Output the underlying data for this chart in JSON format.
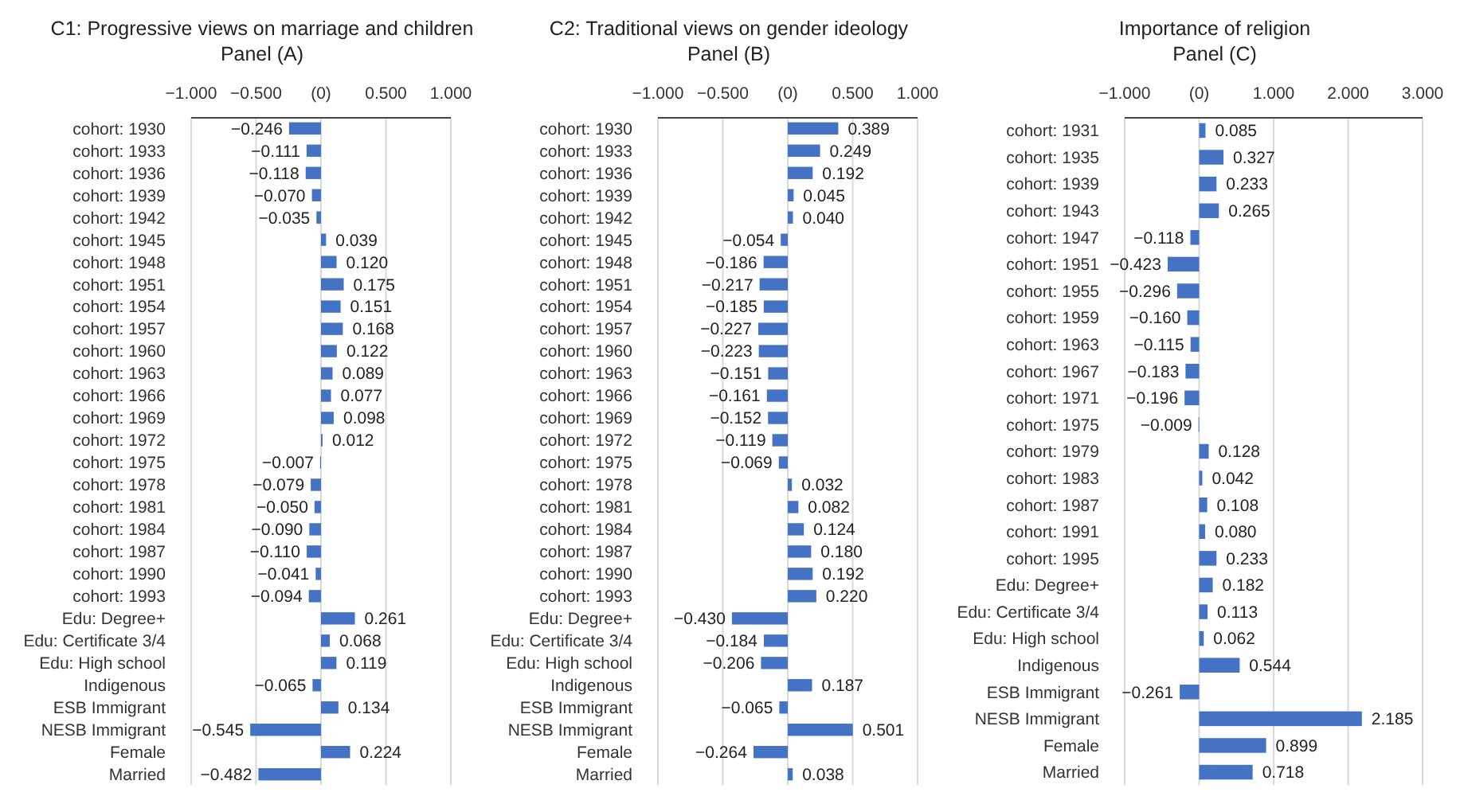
{
  "chart_data": [
    {
      "type": "bar",
      "orientation": "horizontal",
      "title": "C1: Progressive views on marriage and children",
      "subtitle": "Panel (A)",
      "color": "#4472c4",
      "grid": "x",
      "categories": [
        "cohort: 1930",
        "cohort: 1933",
        "cohort: 1936",
        "cohort: 1939",
        "cohort: 1942",
        "cohort: 1945",
        "cohort: 1948",
        "cohort: 1951",
        "cohort: 1954",
        "cohort: 1957",
        "cohort: 1960",
        "cohort: 1963",
        "cohort: 1966",
        "cohort: 1969",
        "cohort: 1972",
        "cohort: 1975",
        "cohort: 1978",
        "cohort: 1981",
        "cohort: 1984",
        "cohort: 1987",
        "cohort: 1990",
        "cohort: 1993",
        "Edu: Degree+",
        "Edu: Certificate 3/4",
        "Edu: High school",
        "Indigenous",
        "ESB Immigrant",
        "NESB Immigrant",
        "Female",
        "Married"
      ],
      "values": [
        -0.246,
        -0.111,
        -0.118,
        -0.07,
        -0.035,
        0.039,
        0.12,
        0.175,
        0.151,
        0.168,
        0.122,
        0.089,
        0.077,
        0.098,
        0.012,
        -0.007,
        -0.079,
        -0.05,
        -0.09,
        -0.11,
        -0.041,
        -0.094,
        0.261,
        0.068,
        0.119,
        -0.065,
        0.134,
        -0.545,
        0.224,
        -0.482
      ],
      "value_labels": [
        "−0.246",
        "−0.111",
        "−0.118",
        "−0.070",
        "−0.035",
        "0.039",
        "0.120",
        "0.175",
        "0.151",
        "0.168",
        "0.122",
        "0.089",
        "0.077",
        "0.098",
        "0.012",
        "−0.007",
        "−0.079",
        "−0.050",
        "−0.090",
        "−0.110",
        "−0.041",
        "−0.094",
        "0.261",
        "0.068",
        "0.119",
        "−0.065",
        "0.134",
        "−0.545",
        "0.224",
        "−0.482"
      ],
      "xlim": [
        -1,
        1
      ],
      "xticks": [
        {
          "value": -1,
          "label": "−1.000"
        },
        {
          "value": -0.5,
          "label": "−0.500"
        },
        {
          "value": 0,
          "label": "(0)"
        },
        {
          "value": 0.5,
          "label": "0.500"
        },
        {
          "value": 1,
          "label": "1.000"
        }
      ]
    },
    {
      "type": "bar",
      "orientation": "horizontal",
      "title": "C2: Traditional views on gender ideology",
      "subtitle": "Panel (B)",
      "color": "#4472c4",
      "grid": "x",
      "categories": [
        "cohort: 1930",
        "cohort: 1933",
        "cohort: 1936",
        "cohort: 1939",
        "cohort: 1942",
        "cohort: 1945",
        "cohort: 1948",
        "cohort: 1951",
        "cohort: 1954",
        "cohort: 1957",
        "cohort: 1960",
        "cohort: 1963",
        "cohort: 1966",
        "cohort: 1969",
        "cohort: 1972",
        "cohort: 1975",
        "cohort: 1978",
        "cohort: 1981",
        "cohort: 1984",
        "cohort: 1987",
        "cohort: 1990",
        "cohort: 1993",
        "Edu: Degree+",
        "Edu: Certificate 3/4",
        "Edu: High school",
        "Indigenous",
        "ESB Immigrant",
        "NESB Immigrant",
        "Female",
        "Married"
      ],
      "values": [
        0.389,
        0.249,
        0.192,
        0.045,
        0.04,
        -0.054,
        -0.186,
        -0.217,
        -0.185,
        -0.227,
        -0.223,
        -0.151,
        -0.161,
        -0.152,
        -0.119,
        -0.069,
        0.032,
        0.082,
        0.124,
        0.18,
        0.192,
        0.22,
        -0.43,
        -0.184,
        -0.206,
        0.187,
        -0.065,
        0.501,
        -0.264,
        0.038
      ],
      "value_labels": [
        "0.389",
        "0.249",
        "0.192",
        "0.045",
        "0.040",
        "−0.054",
        "−0.186",
        "−0.217",
        "−0.185",
        "−0.227",
        "−0.223",
        "−0.151",
        "−0.161",
        "−0.152",
        "−0.119",
        "−0.069",
        "0.032",
        "0.082",
        "0.124",
        "0.180",
        "0.192",
        "0.220",
        "−0.430",
        "−0.184",
        "−0.206",
        "0.187",
        "−0.065",
        "0.501",
        "−0.264",
        "0.038"
      ],
      "xlim": [
        -1,
        1
      ],
      "xticks": [
        {
          "value": -1,
          "label": "−1.000"
        },
        {
          "value": -0.5,
          "label": "−0.500"
        },
        {
          "value": 0,
          "label": "(0)"
        },
        {
          "value": 0.5,
          "label": "0.500"
        },
        {
          "value": 1,
          "label": "1.000"
        }
      ]
    },
    {
      "type": "bar",
      "orientation": "horizontal",
      "title": "Importance of religion",
      "subtitle": "Panel (C)",
      "color": "#4472c4",
      "grid": "x",
      "categories": [
        "cohort: 1931",
        "cohort: 1935",
        "cohort: 1939",
        "cohort: 1943",
        "cohort: 1947",
        "cohort: 1951",
        "cohort: 1955",
        "cohort: 1959",
        "cohort: 1963",
        "cohort: 1967",
        "cohort: 1971",
        "cohort: 1975",
        "cohort: 1979",
        "cohort: 1983",
        "cohort: 1987",
        "cohort: 1991",
        "cohort: 1995",
        "Edu: Degree+",
        "Edu: Certificate 3/4",
        "Edu: High school",
        "Indigenous",
        "ESB Immigrant",
        "NESB Immigrant",
        "Female",
        "Married"
      ],
      "values": [
        0.085,
        0.327,
        0.233,
        0.265,
        -0.118,
        -0.423,
        -0.296,
        -0.16,
        -0.115,
        -0.183,
        -0.196,
        -0.009,
        0.128,
        0.042,
        0.108,
        0.08,
        0.233,
        0.182,
        0.113,
        0.062,
        0.544,
        -0.261,
        2.185,
        0.899,
        0.718
      ],
      "value_labels": [
        "0.085",
        "0.327",
        "0.233",
        "0.265",
        "−0.118",
        "−0.423",
        "−0.296",
        "−0.160",
        "−0.115",
        "−0.183",
        "−0.196",
        "−0.009",
        "0.128",
        "0.042",
        "0.108",
        "0.080",
        "0.233",
        "0.182",
        "0.113",
        "0.062",
        "0.544",
        "−0.261",
        "2.185",
        "0.899",
        "0.718"
      ],
      "xlim": [
        -1,
        3
      ],
      "xticks": [
        {
          "value": -1,
          "label": "−1.000"
        },
        {
          "value": 0,
          "label": "(0)"
        },
        {
          "value": 1,
          "label": "1.000"
        },
        {
          "value": 2,
          "label": "2.000"
        },
        {
          "value": 3,
          "label": "3.000"
        }
      ]
    }
  ]
}
